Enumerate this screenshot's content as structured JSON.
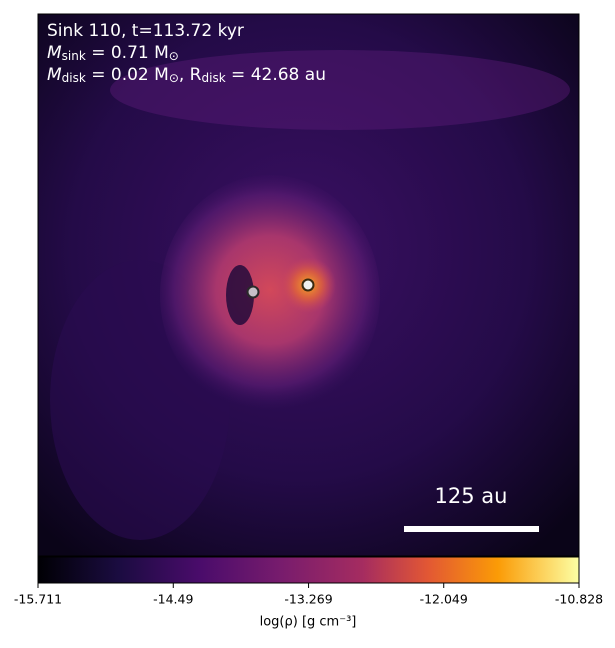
{
  "chart_data": {
    "type": "density-map",
    "annotations": [
      [
        "Sink 110, t=113.72 kyr"
      ],
      [
        "M",
        "sink",
        " = 0.71 M",
        "⊙"
      ],
      [
        "M",
        "disk",
        " = 0.02 M",
        "⊙",
        ", R",
        "disk",
        " = 42.68 au"
      ]
    ],
    "scale_bar_label": "125 au",
    "colorbar": {
      "label": "log(ρ) [g cm⁻³]",
      "lim": [
        -15.711,
        -10.828
      ],
      "ticks": [
        -15.711,
        -14.49,
        -13.269,
        -12.049,
        -10.828
      ]
    }
  }
}
